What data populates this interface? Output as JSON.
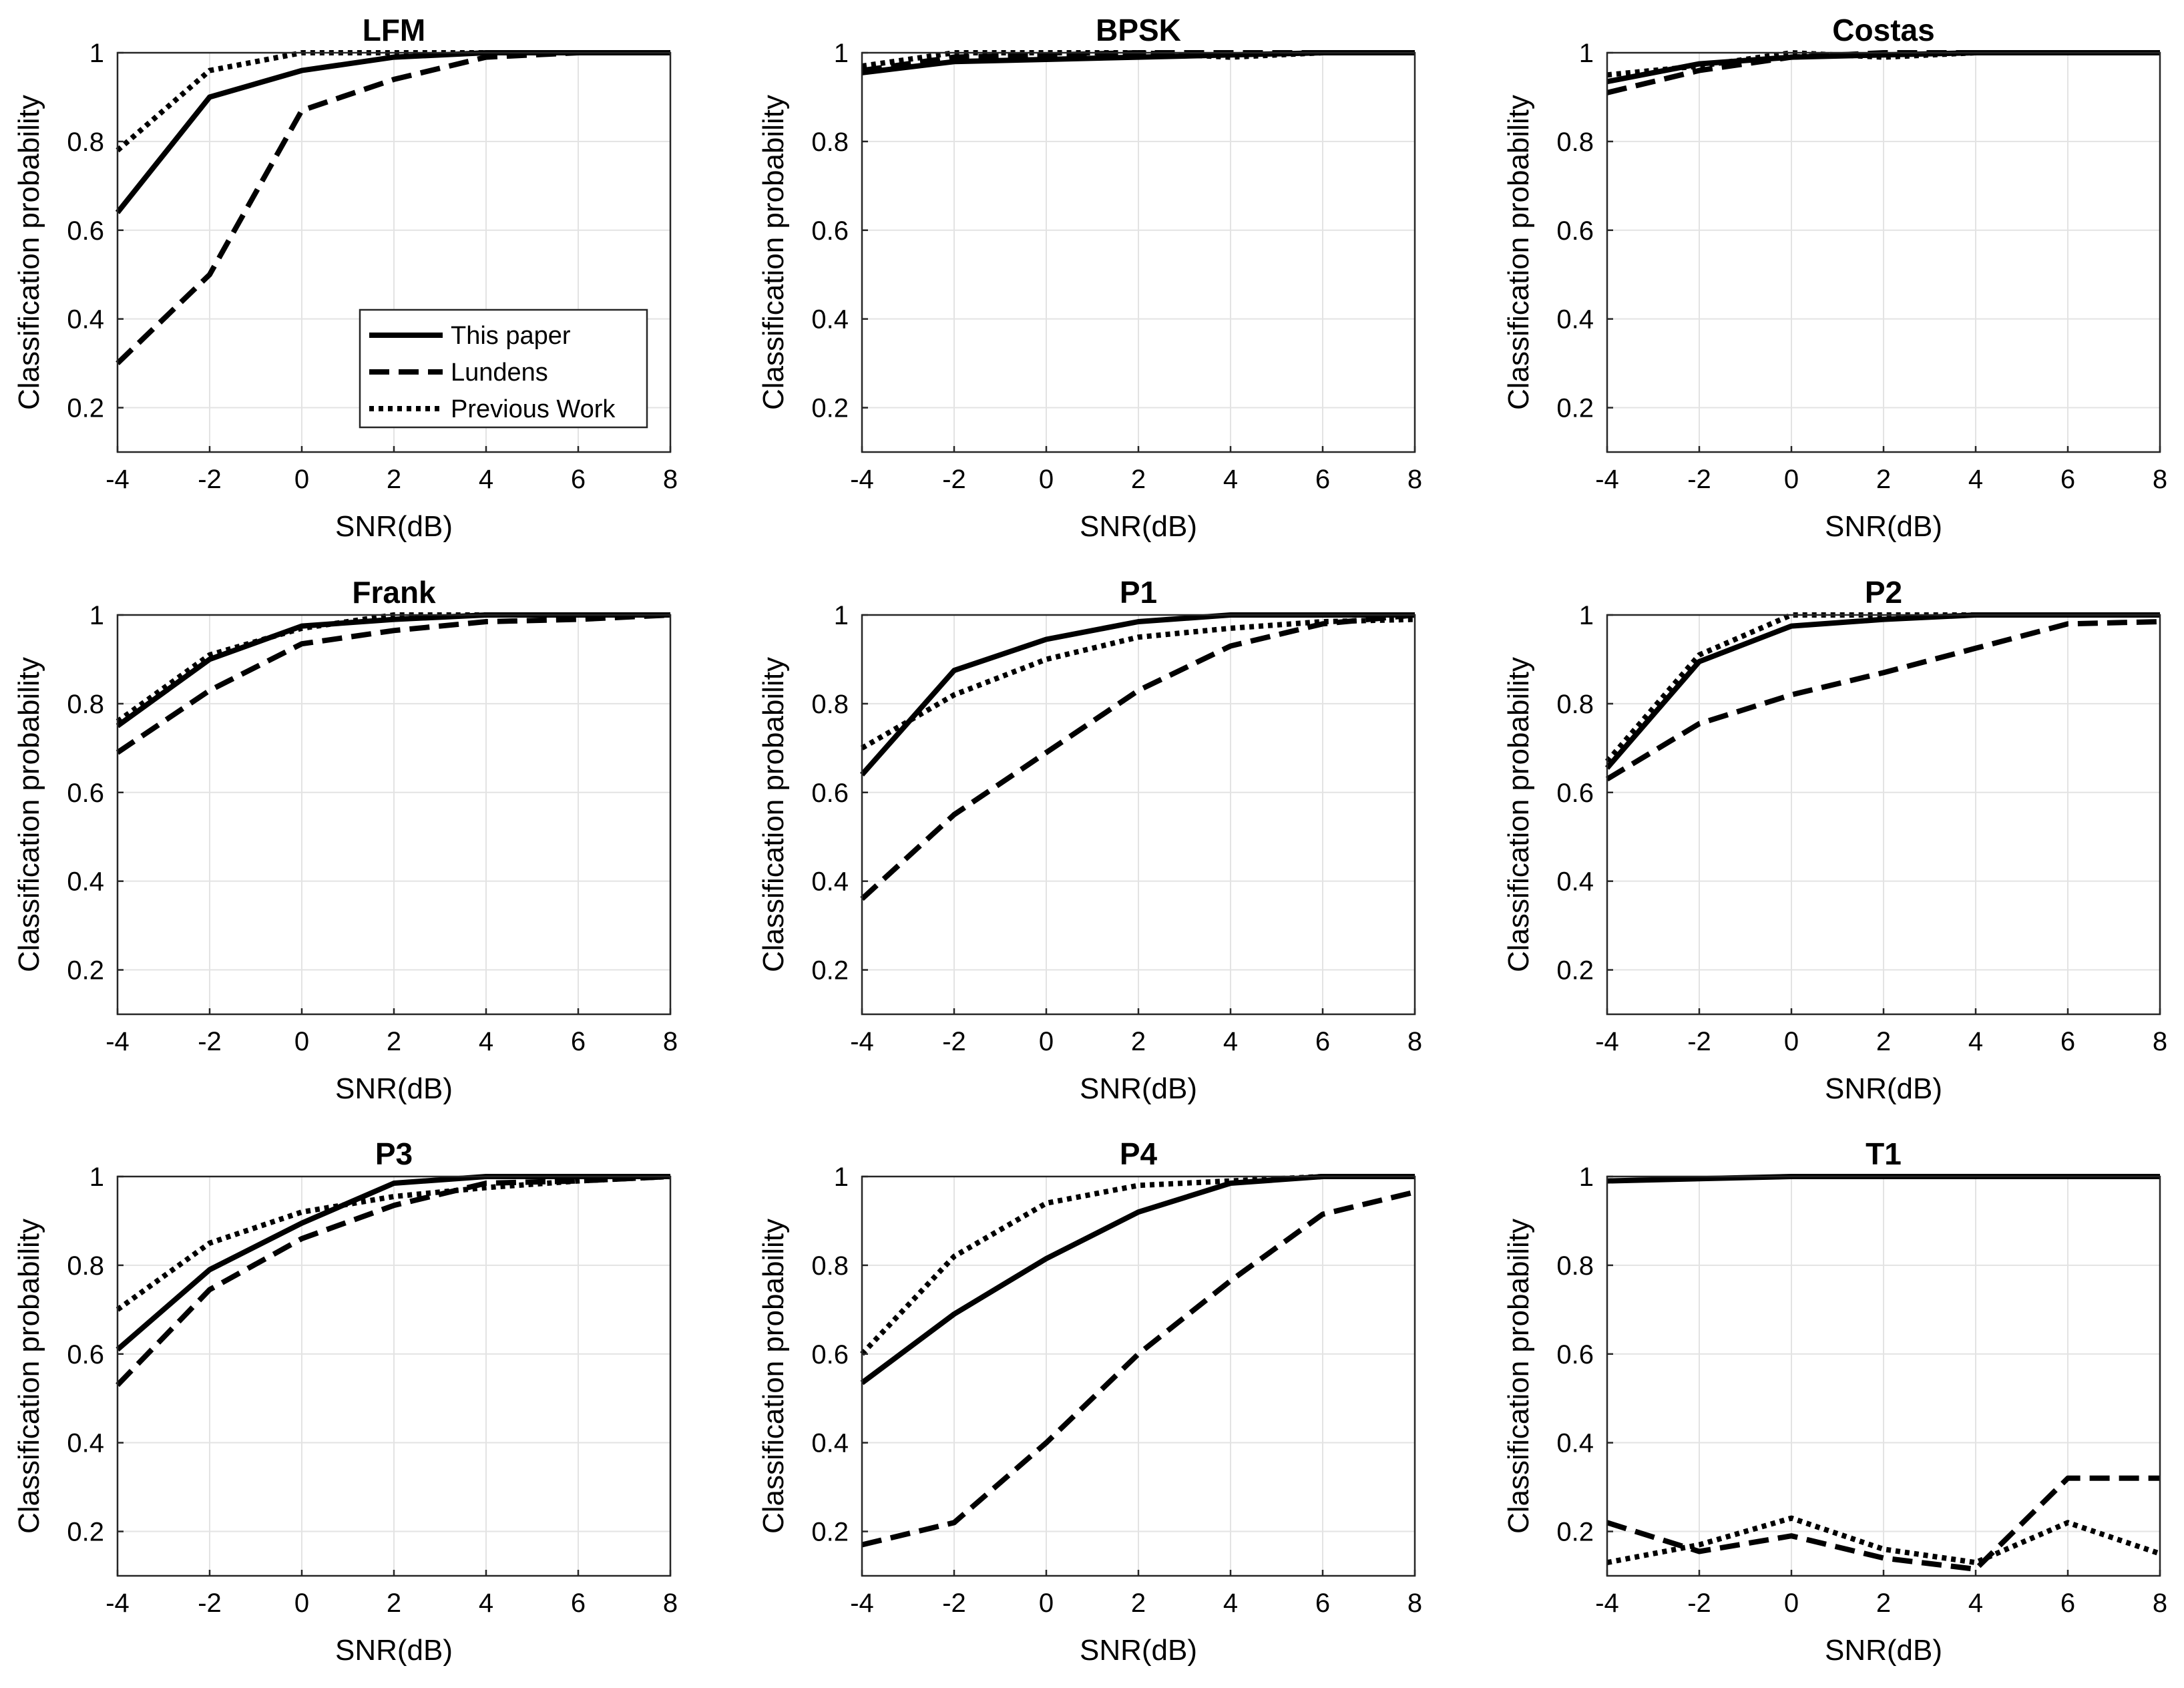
{
  "chart_data": [
    {
      "type": "line",
      "title": "LFM",
      "xlabel": "SNR(dB)",
      "ylabel": "Classification probability",
      "x": [
        -4,
        -2,
        0,
        2,
        4,
        6,
        8
      ],
      "xlim": [
        -4,
        8
      ],
      "ylim": [
        0.1,
        1
      ],
      "xticks": [
        "-4",
        "-2",
        "0",
        "2",
        "4",
        "6",
        "8"
      ],
      "yticks": [
        "0.2",
        "0.4",
        "0.6",
        "0.8",
        "1"
      ],
      "grid": true,
      "legend_position": "bottom-right",
      "series": [
        {
          "name": "This paper",
          "style": "solid",
          "values": [
            0.64,
            0.9,
            0.96,
            0.99,
            1.0,
            1.0,
            1.0
          ]
        },
        {
          "name": "Lundens",
          "style": "dashed",
          "values": [
            0.3,
            0.5,
            0.87,
            0.94,
            0.99,
            1.0,
            1.0
          ]
        },
        {
          "name": "Previous Work",
          "style": "dotted",
          "values": [
            0.78,
            0.96,
            1.0,
            1.0,
            1.0,
            1.0,
            1.0
          ]
        }
      ]
    },
    {
      "type": "line",
      "title": "BPSK",
      "xlabel": "SNR(dB)",
      "ylabel": "Classification probability",
      "x": [
        -4,
        -2,
        0,
        2,
        4,
        6,
        8
      ],
      "xlim": [
        -4,
        8
      ],
      "ylim": [
        0.1,
        1
      ],
      "xticks": [
        "-4",
        "-2",
        "0",
        "2",
        "4",
        "6",
        "8"
      ],
      "yticks": [
        "0.2",
        "0.4",
        "0.6",
        "0.8",
        "1"
      ],
      "grid": true,
      "series": [
        {
          "name": "This paper",
          "style": "solid",
          "values": [
            0.955,
            0.98,
            0.985,
            0.99,
            0.995,
            1.0,
            1.0
          ]
        },
        {
          "name": "Lundens",
          "style": "dashed",
          "values": [
            0.96,
            0.99,
            0.995,
            1.0,
            1.0,
            1.0,
            1.0
          ]
        },
        {
          "name": "Previous Work",
          "style": "dotted",
          "values": [
            0.97,
            1.0,
            1.0,
            1.0,
            0.99,
            1.0,
            1.0
          ]
        }
      ]
    },
    {
      "type": "line",
      "title": "Costas",
      "xlabel": "SNR(dB)",
      "ylabel": "Classification probability",
      "x": [
        -4,
        -2,
        0,
        2,
        4,
        6,
        8
      ],
      "xlim": [
        -4,
        8
      ],
      "ylim": [
        0.1,
        1
      ],
      "xticks": [
        "-4",
        "-2",
        "0",
        "2",
        "4",
        "6",
        "8"
      ],
      "yticks": [
        "0.2",
        "0.4",
        "0.6",
        "0.8",
        "1"
      ],
      "grid": true,
      "series": [
        {
          "name": "This paper",
          "style": "solid",
          "values": [
            0.935,
            0.975,
            0.99,
            0.995,
            1.0,
            1.0,
            1.0
          ]
        },
        {
          "name": "Lundens",
          "style": "dashed",
          "values": [
            0.91,
            0.96,
            0.99,
            1.0,
            1.0,
            1.0,
            1.0
          ]
        },
        {
          "name": "Previous Work",
          "style": "dotted",
          "values": [
            0.95,
            0.97,
            1.0,
            0.99,
            1.0,
            1.0,
            1.0
          ]
        }
      ]
    },
    {
      "type": "line",
      "title": "Frank",
      "xlabel": "SNR(dB)",
      "ylabel": "Classification probability",
      "x": [
        -4,
        -2,
        0,
        2,
        4,
        6,
        8
      ],
      "xlim": [
        -4,
        8
      ],
      "ylim": [
        0.1,
        1
      ],
      "xticks": [
        "-4",
        "-2",
        "0",
        "2",
        "4",
        "6",
        "8"
      ],
      "yticks": [
        "0.2",
        "0.4",
        "0.6",
        "0.8",
        "1"
      ],
      "grid": true,
      "series": [
        {
          "name": "This paper",
          "style": "solid",
          "values": [
            0.75,
            0.9,
            0.975,
            0.99,
            1.0,
            1.0,
            1.0
          ]
        },
        {
          "name": "Lundens",
          "style": "dashed",
          "values": [
            0.69,
            0.83,
            0.935,
            0.965,
            0.985,
            0.99,
            1.0
          ]
        },
        {
          "name": "Previous Work",
          "style": "dotted",
          "values": [
            0.76,
            0.91,
            0.97,
            1.0,
            1.0,
            1.0,
            1.0
          ]
        }
      ]
    },
    {
      "type": "line",
      "title": "P1",
      "xlabel": "SNR(dB)",
      "ylabel": "Classification probability",
      "x": [
        -4,
        -2,
        0,
        2,
        4,
        6,
        8
      ],
      "xlim": [
        -4,
        8
      ],
      "ylim": [
        0.1,
        1
      ],
      "xticks": [
        "-4",
        "-2",
        "0",
        "2",
        "4",
        "6",
        "8"
      ],
      "yticks": [
        "0.2",
        "0.4",
        "0.6",
        "0.8",
        "1"
      ],
      "grid": true,
      "series": [
        {
          "name": "This paper",
          "style": "solid",
          "values": [
            0.64,
            0.875,
            0.945,
            0.985,
            1.0,
            1.0,
            1.0
          ]
        },
        {
          "name": "Lundens",
          "style": "dashed",
          "values": [
            0.36,
            0.55,
            0.69,
            0.83,
            0.93,
            0.98,
            1.0
          ]
        },
        {
          "name": "Previous Work",
          "style": "dotted",
          "values": [
            0.7,
            0.82,
            0.9,
            0.95,
            0.97,
            0.985,
            0.99
          ]
        }
      ]
    },
    {
      "type": "line",
      "title": "P2",
      "xlabel": "SNR(dB)",
      "ylabel": "Classification probability",
      "x": [
        -4,
        -2,
        0,
        2,
        4,
        6,
        8
      ],
      "xlim": [
        -4,
        8
      ],
      "ylim": [
        0.1,
        1
      ],
      "xticks": [
        "-4",
        "-2",
        "0",
        "2",
        "4",
        "6",
        "8"
      ],
      "yticks": [
        "0.2",
        "0.4",
        "0.6",
        "0.8",
        "1"
      ],
      "grid": true,
      "series": [
        {
          "name": "This paper",
          "style": "solid",
          "values": [
            0.655,
            0.895,
            0.975,
            0.99,
            1.0,
            1.0,
            1.0
          ]
        },
        {
          "name": "Lundens",
          "style": "dashed",
          "values": [
            0.63,
            0.755,
            0.82,
            0.87,
            0.925,
            0.98,
            0.985
          ]
        },
        {
          "name": "Previous Work",
          "style": "dotted",
          "values": [
            0.67,
            0.91,
            1.0,
            1.0,
            1.0,
            1.0,
            1.0
          ]
        }
      ]
    },
    {
      "type": "line",
      "title": "P3",
      "xlabel": "SNR(dB)",
      "ylabel": "Classification probability",
      "x": [
        -4,
        -2,
        0,
        2,
        4,
        6,
        8
      ],
      "xlim": [
        -4,
        8
      ],
      "ylim": [
        0.1,
        1
      ],
      "xticks": [
        "-4",
        "-2",
        "0",
        "2",
        "4",
        "6",
        "8"
      ],
      "yticks": [
        "0.2",
        "0.4",
        "0.6",
        "0.8",
        "1"
      ],
      "grid": true,
      "series": [
        {
          "name": "This paper",
          "style": "solid",
          "values": [
            0.61,
            0.79,
            0.895,
            0.985,
            1.0,
            1.0,
            1.0
          ]
        },
        {
          "name": "Lundens",
          "style": "dashed",
          "values": [
            0.53,
            0.745,
            0.86,
            0.935,
            0.985,
            0.99,
            1.0
          ]
        },
        {
          "name": "Previous Work",
          "style": "dotted",
          "values": [
            0.7,
            0.85,
            0.92,
            0.955,
            0.975,
            0.99,
            1.0
          ]
        }
      ]
    },
    {
      "type": "line",
      "title": "P4",
      "xlabel": "SNR(dB)",
      "ylabel": "Classification probability",
      "x": [
        -4,
        -2,
        0,
        2,
        4,
        6,
        8
      ],
      "xlim": [
        -4,
        8
      ],
      "ylim": [
        0.1,
        1
      ],
      "xticks": [
        "-4",
        "-2",
        "0",
        "2",
        "4",
        "6",
        "8"
      ],
      "yticks": [
        "0.2",
        "0.4",
        "0.6",
        "0.8",
        "1"
      ],
      "grid": true,
      "series": [
        {
          "name": "This paper",
          "style": "solid",
          "values": [
            0.535,
            0.69,
            0.815,
            0.92,
            0.985,
            1.0,
            1.0
          ]
        },
        {
          "name": "Lundens",
          "style": "dashed",
          "values": [
            0.17,
            0.22,
            0.4,
            0.6,
            0.765,
            0.915,
            0.965
          ]
        },
        {
          "name": "Previous Work",
          "style": "dotted",
          "values": [
            0.6,
            0.82,
            0.94,
            0.98,
            0.99,
            1.0,
            1.0
          ]
        }
      ]
    },
    {
      "type": "line",
      "title": "T1",
      "xlabel": "SNR(dB)",
      "ylabel": "Classification probability",
      "x": [
        -4,
        -2,
        0,
        2,
        4,
        6,
        8
      ],
      "xlim": [
        -4,
        8
      ],
      "ylim": [
        0.1,
        1
      ],
      "xticks": [
        "-4",
        "-2",
        "0",
        "2",
        "4",
        "6",
        "8"
      ],
      "yticks": [
        "0.2",
        "0.4",
        "0.6",
        "0.8",
        "1"
      ],
      "grid": true,
      "series": [
        {
          "name": "This paper",
          "style": "solid",
          "values": [
            0.99,
            0.995,
            1.0,
            1.0,
            1.0,
            1.0,
            1.0
          ]
        },
        {
          "name": "Lundens",
          "style": "dashed",
          "values": [
            0.22,
            0.155,
            0.19,
            0.14,
            0.115,
            0.32,
            0.32
          ]
        },
        {
          "name": "Previous Work",
          "style": "dotted",
          "values": [
            0.13,
            0.17,
            0.23,
            0.16,
            0.13,
            0.22,
            0.15
          ]
        }
      ]
    }
  ]
}
